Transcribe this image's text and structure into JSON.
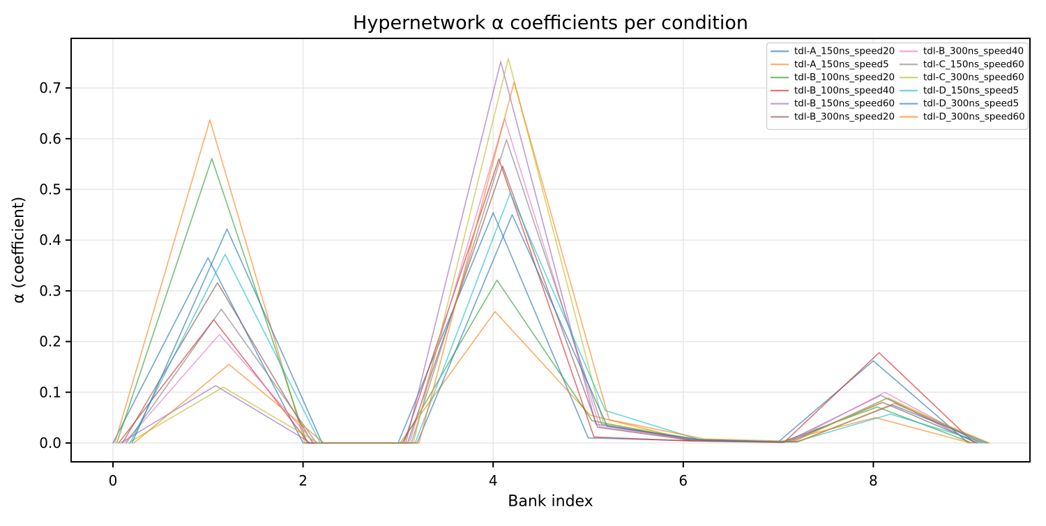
{
  "title": "Hypernetwork α coefficients per condition",
  "chart_data": {
    "type": "line",
    "title": "Hypernetwork α coefficients per condition",
    "xlabel": "Bank index",
    "ylabel": "α (coefficient)",
    "x": [
      0,
      1,
      2,
      3,
      4,
      5,
      6,
      7,
      8,
      9
    ],
    "x_jitter_step": 0.02,
    "xlim": [
      -0.44,
      9.67
    ],
    "ylim": [
      -0.037,
      0.798
    ],
    "xticks": [
      0,
      2,
      4,
      6,
      8
    ],
    "yticks": [
      0.0,
      0.1,
      0.2,
      0.3,
      0.4,
      0.5,
      0.6,
      0.7
    ],
    "grid": true,
    "line_alpha": 0.65,
    "line_width": 1.6,
    "legend": {
      "position": "upper right",
      "columns": 2,
      "rows_per_column": 6
    },
    "series": [
      {
        "name": "tdl-A_150ns_speed20",
        "color": "#1f77b4",
        "values": [
          0,
          0.365,
          0,
          0,
          0.454,
          0.01,
          0.005,
          0.002,
          0.162,
          0
        ]
      },
      {
        "name": "tdl-A_150ns_speed5",
        "color": "#ff7f0e",
        "values": [
          0,
          0.637,
          0,
          0,
          0.259,
          0.055,
          0.008,
          0.002,
          0.05,
          0
        ]
      },
      {
        "name": "tdl-B_100ns_speed20",
        "color": "#2ca02c",
        "values": [
          0,
          0.561,
          0,
          0,
          0.321,
          0.044,
          0.007,
          0.002,
          0.071,
          0
        ]
      },
      {
        "name": "tdl-B_100ns_speed40",
        "color": "#d62728",
        "values": [
          0,
          0.243,
          0,
          0,
          0.56,
          0.012,
          0.004,
          0.001,
          0.178,
          0
        ]
      },
      {
        "name": "tdl-B_150ns_speed60",
        "color": "#9467bd",
        "values": [
          0,
          0.113,
          0,
          0,
          0.752,
          0.037,
          0.006,
          0.002,
          0.094,
          0
        ]
      },
      {
        "name": "tdl-B_300ns_speed20",
        "color": "#8c564b",
        "values": [
          0,
          0.316,
          0,
          0,
          0.546,
          0.031,
          0.005,
          0.002,
          0.08,
          0
        ]
      },
      {
        "name": "tdl-B_300ns_speed40",
        "color": "#e377c2",
        "values": [
          0,
          0.214,
          0,
          0,
          0.64,
          0.032,
          0.006,
          0.002,
          0.1,
          0
        ]
      },
      {
        "name": "tdl-C_150ns_speed60",
        "color": "#7f7f7f",
        "values": [
          0,
          0.264,
          0,
          0,
          0.598,
          0.037,
          0.006,
          0.002,
          0.088,
          0
        ]
      },
      {
        "name": "tdl-C_300ns_speed60",
        "color": "#bcbd22",
        "values": [
          0,
          0.11,
          0,
          0,
          0.758,
          0.039,
          0.007,
          0.002,
          0.089,
          0
        ]
      },
      {
        "name": "tdl-D_150ns_speed5",
        "color": "#17becf",
        "values": [
          0,
          0.372,
          0,
          0,
          0.493,
          0.064,
          0.006,
          0.002,
          0.057,
          0
        ]
      },
      {
        "name": "tdl-D_300ns_speed5",
        "color": "#1f77b4",
        "values": [
          0,
          0.422,
          0,
          0,
          0.45,
          0.033,
          0.006,
          0.002,
          0.075,
          0
        ]
      },
      {
        "name": "tdl-D_300ns_speed60",
        "color": "#ff7f0e",
        "values": [
          0,
          0.155,
          0,
          0,
          0.711,
          0.046,
          0.008,
          0.003,
          0.078,
          0
        ]
      }
    ]
  },
  "style_colors": {
    "grid": "#e7e7e7",
    "spine": "#000000",
    "legend_border": "#cccccc",
    "legend_background": "#ffffff"
  }
}
